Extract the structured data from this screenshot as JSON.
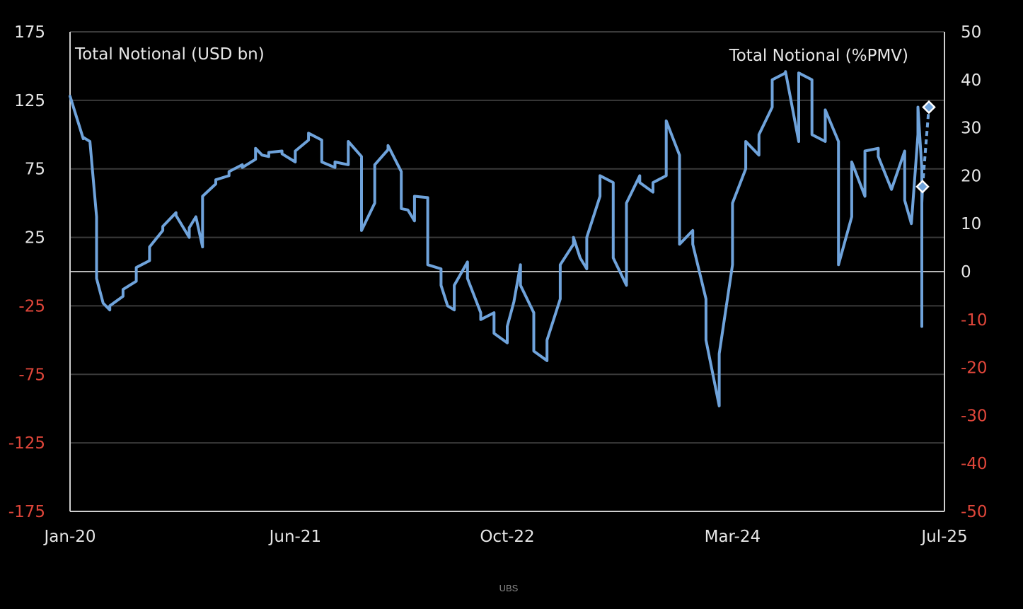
{
  "colors": {
    "background": "#000000",
    "gridline": "#3a3a3a",
    "zero_line": "#b8b8b8",
    "axis": "#cfcfcf",
    "series": "#6fa3db",
    "positive_tick": "#e6e6e6",
    "negative_tick": "#e0463a",
    "marker_fill": "#ffffff"
  },
  "source": "UBS",
  "chart_data": {
    "type": "line",
    "left_axis": {
      "label": "Total Notional (USD bn)",
      "min": -175,
      "max": 175,
      "ticks": [
        175,
        125,
        75,
        25,
        -25,
        -75,
        -125,
        -175
      ]
    },
    "right_axis": {
      "label": "Total Notional (%PMV)",
      "min": -50,
      "max": 50,
      "ticks": [
        50,
        40,
        30,
        20,
        10,
        0,
        -10,
        -20,
        -30,
        -40,
        -50
      ]
    },
    "x_axis": {
      "min": "2020-01",
      "max": "2025-07",
      "tick_labels": [
        "Jan-20",
        "Jun-21",
        "Oct-22",
        "Mar-24",
        "Jul-25"
      ],
      "tick_dates": [
        "2020-01",
        "2021-06",
        "2022-10",
        "2024-03",
        "2025-07"
      ]
    },
    "grid": true,
    "series": [
      {
        "axis": "left",
        "style": "solid",
        "points": [
          [
            "2020-01",
            128
          ],
          [
            "2020-01",
            97
          ],
          [
            "2020-02",
            98
          ],
          [
            "2020-02",
            95
          ],
          [
            "2020-02",
            40
          ],
          [
            "2020-03",
            -5
          ],
          [
            "2020-03",
            -23
          ],
          [
            "2020-03",
            -28
          ],
          [
            "2020-04",
            -25
          ],
          [
            "2020-04",
            -18
          ],
          [
            "2020-05",
            -13
          ],
          [
            "2020-05",
            -7
          ],
          [
            "2020-06",
            3
          ],
          [
            "2020-06",
            8
          ],
          [
            "2020-07",
            18
          ],
          [
            "2020-07",
            30
          ],
          [
            "2020-08",
            33
          ],
          [
            "2020-08",
            43
          ],
          [
            "2020-09",
            41
          ],
          [
            "2020-09",
            25
          ],
          [
            "2020-10",
            32
          ],
          [
            "2020-10",
            40
          ],
          [
            "2020-10",
            18
          ],
          [
            "2020-11",
            55
          ],
          [
            "2020-11",
            64
          ],
          [
            "2020-12",
            67
          ],
          [
            "2020-12",
            70
          ],
          [
            "2021-01",
            73
          ],
          [
            "2021-01",
            78
          ],
          [
            "2021-02",
            76
          ],
          [
            "2021-02",
            82
          ],
          [
            "2021-03",
            90
          ],
          [
            "2021-03",
            85
          ],
          [
            "2021-03",
            84
          ],
          [
            "2021-04",
            87
          ],
          [
            "2021-04",
            88
          ],
          [
            "2021-05",
            86
          ],
          [
            "2021-05",
            80
          ],
          [
            "2021-06",
            88
          ],
          [
            "2021-06",
            96
          ],
          [
            "2021-07",
            101
          ],
          [
            "2021-07",
            96
          ],
          [
            "2021-08",
            80
          ],
          [
            "2021-08",
            76
          ],
          [
            "2021-09",
            80
          ],
          [
            "2021-09",
            78
          ],
          [
            "2021-10",
            95
          ],
          [
            "2021-10",
            84
          ],
          [
            "2021-11",
            30
          ],
          [
            "2021-11",
            50
          ],
          [
            "2021-12",
            78
          ],
          [
            "2021-12",
            89
          ],
          [
            "2022-01",
            92
          ],
          [
            "2022-01",
            73
          ],
          [
            "2022-02",
            46
          ],
          [
            "2022-02",
            45
          ],
          [
            "2022-02",
            37
          ],
          [
            "2022-03",
            55
          ],
          [
            "2022-03",
            54
          ],
          [
            "2022-04",
            5
          ],
          [
            "2022-04",
            2
          ],
          [
            "2022-05",
            -10
          ],
          [
            "2022-05",
            -25
          ],
          [
            "2022-05",
            -28
          ],
          [
            "2022-06",
            -10
          ],
          [
            "2022-06",
            7
          ],
          [
            "2022-07",
            -5
          ],
          [
            "2022-07",
            -30
          ],
          [
            "2022-08",
            -35
          ],
          [
            "2022-08",
            -30
          ],
          [
            "2022-09",
            -45
          ],
          [
            "2022-09",
            -52
          ],
          [
            "2022-10",
            -40
          ],
          [
            "2022-10",
            -22
          ],
          [
            "2022-10",
            5
          ],
          [
            "2022-11",
            -10
          ],
          [
            "2022-11",
            -30
          ],
          [
            "2022-12",
            -58
          ],
          [
            "2022-12",
            -65
          ],
          [
            "2023-01",
            -50
          ],
          [
            "2023-01",
            -20
          ],
          [
            "2023-02",
            5
          ],
          [
            "2023-02",
            20
          ],
          [
            "2023-03",
            25
          ],
          [
            "2023-03",
            10
          ],
          [
            "2023-03",
            2
          ],
          [
            "2023-04",
            25
          ],
          [
            "2023-04",
            55
          ],
          [
            "2023-05",
            70
          ],
          [
            "2023-05",
            65
          ],
          [
            "2023-06",
            10
          ],
          [
            "2023-06",
            -10
          ],
          [
            "2023-07",
            50
          ],
          [
            "2023-07",
            70
          ],
          [
            "2023-08",
            65
          ],
          [
            "2023-08",
            58
          ],
          [
            "2023-09",
            65
          ],
          [
            "2023-09",
            70
          ],
          [
            "2023-10",
            110
          ],
          [
            "2023-10",
            85
          ],
          [
            "2023-11",
            20
          ],
          [
            "2023-11",
            30
          ],
          [
            "2023-12",
            20
          ],
          [
            "2023-12",
            -20
          ],
          [
            "2024-01",
            -50
          ],
          [
            "2024-01",
            -98
          ],
          [
            "2024-02",
            -60
          ],
          [
            "2024-02",
            5
          ],
          [
            "2024-03",
            50
          ],
          [
            "2024-03",
            75
          ],
          [
            "2024-04",
            95
          ],
          [
            "2024-04",
            85
          ],
          [
            "2024-05",
            100
          ],
          [
            "2024-05",
            120
          ],
          [
            "2024-06",
            140
          ],
          [
            "2024-06",
            145
          ],
          [
            "2024-07",
            146
          ],
          [
            "2024-07",
            95
          ],
          [
            "2024-08",
            145
          ],
          [
            "2024-08",
            140
          ],
          [
            "2024-09",
            100
          ],
          [
            "2024-09",
            95
          ],
          [
            "2024-10",
            118
          ],
          [
            "2024-10",
            95
          ],
          [
            "2024-11",
            5
          ],
          [
            "2024-11",
            40
          ],
          [
            "2024-12",
            80
          ],
          [
            "2024-12",
            55
          ],
          [
            "2025-01",
            88
          ],
          [
            "2025-01",
            90
          ],
          [
            "2025-02",
            84
          ],
          [
            "2025-02",
            60
          ],
          [
            "2025-03",
            60
          ],
          [
            "2025-03",
            88
          ],
          [
            "2025-04",
            52
          ],
          [
            "2025-04",
            35
          ],
          [
            "2025-04",
            100
          ],
          [
            "2025-05",
            120
          ],
          [
            "2025-05",
            75
          ],
          [
            "2025-05",
            35
          ],
          [
            "2025-06",
            30
          ],
          [
            "2025-06",
            -30
          ],
          [
            "2025-06",
            -40
          ],
          [
            "2025-06",
            0
          ],
          [
            "2025-06",
            25
          ],
          [
            "2025-07",
            35
          ],
          [
            "2025-07",
            45
          ],
          [
            "2025-07",
            50
          ],
          [
            "2025-07",
            62
          ]
        ]
      }
    ],
    "markers": [
      {
        "date": "2025-07",
        "value": 62,
        "axis": "left"
      },
      {
        "date": "2025-07",
        "value": 120,
        "axis": "left"
      }
    ],
    "marker_link": {
      "style": "dashed",
      "from": 0,
      "to": 1
    }
  }
}
